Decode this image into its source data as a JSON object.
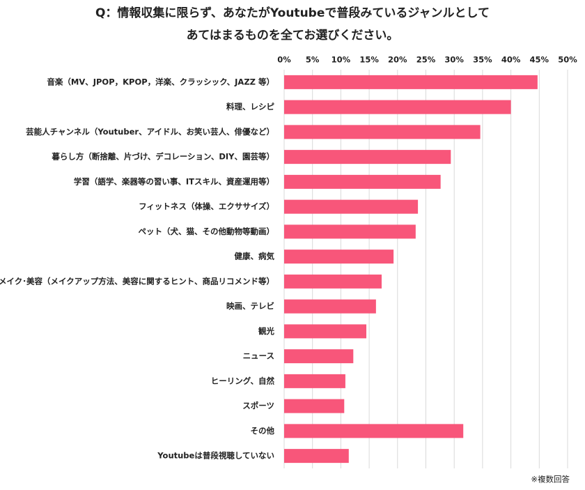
{
  "chart_data": {
    "type": "bar",
    "orientation": "horizontal",
    "title": [
      "Q：情報収集に限らず、あなたがYoutubeで普段みているジャンルとして",
      "あてはまるものを全てお選びください。"
    ],
    "note": "※複数回答",
    "categories": [
      "音楽（MV、JPOP，KPOP，洋楽、クラッシック、JAZZ 等）",
      "料理、レシピ",
      "芸能人チャンネル（Youtuber、アイドル、お笑い芸人、俳優など）",
      "暮らし方（断捨離、片づけ、デコレーション、DIY、園芸等）",
      "学習（語学、楽器等の習い事、ITスキル、資産運用等）",
      "フィットネス（体操、エクササイズ）",
      "ペット（犬、猫、その他動物等動画）",
      "健康、病気",
      "メイク･美容（メイクアップ方法、美容に関するヒント、商品リコメンド等）",
      "映画、テレビ",
      "観光",
      "ニュース",
      "ヒーリング、自然",
      "スポーツ",
      "その他",
      "Youtubeは普段視聴していない"
    ],
    "values": [
      44.7,
      40.0,
      34.6,
      29.4,
      27.6,
      23.6,
      23.2,
      19.3,
      17.2,
      16.2,
      14.5,
      12.2,
      10.8,
      10.6,
      31.6,
      11.4
    ],
    "color": "#f8567a",
    "xlim": [
      0,
      50
    ],
    "xticks": [
      {
        "value": 0,
        "label": "0%"
      },
      {
        "value": 5,
        "label": "5%"
      },
      {
        "value": 10,
        "label": "10%"
      },
      {
        "value": 15,
        "label": "15%"
      },
      {
        "value": 20,
        "label": "20%"
      },
      {
        "value": 25,
        "label": "25%"
      },
      {
        "value": 30,
        "label": "30%"
      },
      {
        "value": 35,
        "label": "35%"
      },
      {
        "value": 40,
        "label": "40%"
      },
      {
        "value": 45,
        "label": "45%"
      },
      {
        "value": 50,
        "label": "50%"
      }
    ],
    "grid": true
  }
}
